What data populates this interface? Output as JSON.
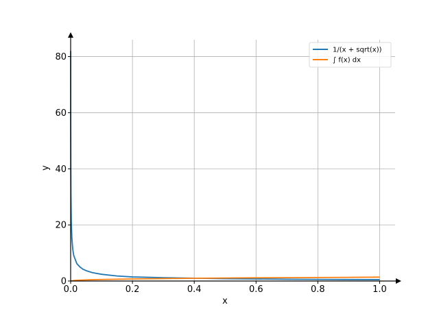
{
  "chart_data": {
    "type": "line",
    "title": "",
    "xlabel": "x",
    "ylabel": "y",
    "xlim": [
      0,
      1.05
    ],
    "ylim": [
      0,
      86
    ],
    "grid": true,
    "legend_position": "top-right",
    "x_ticks": [
      0,
      0.2,
      0.4,
      0.6,
      0.8,
      1.0
    ],
    "x_tick_labels": [
      "0.0",
      "0.2",
      "0.4",
      "0.6",
      "0.8",
      "1.0"
    ],
    "y_ticks": [
      0,
      20,
      40,
      60,
      80
    ],
    "y_tick_labels": [
      "0",
      "20",
      "40",
      "60",
      "80"
    ],
    "series": [
      {
        "name": "1/(x + sqrt(x))",
        "color": "#1f77b4",
        "x": [
          0.00015,
          0.0003,
          0.0006,
          0.001,
          0.002,
          0.004,
          0.007,
          0.01,
          0.02,
          0.03,
          0.04,
          0.05,
          0.07,
          0.1,
          0.15,
          0.2,
          0.25,
          0.3,
          0.4,
          0.5,
          0.6,
          0.7,
          0.8,
          0.9,
          1.0
        ],
        "y": [
          82.0,
          57.0,
          40.5,
          30.7,
          21.4,
          15.2,
          11.2,
          9.1,
          6.2,
          5.0,
          4.2,
          3.7,
          3.0,
          2.4,
          1.8,
          1.45,
          1.33,
          1.2,
          1.0,
          0.83,
          0.74,
          0.65,
          0.59,
          0.54,
          0.5
        ]
      },
      {
        "name": "∫ f(x) dx",
        "color": "#ff7f0e",
        "x": [
          0.0,
          0.01,
          0.02,
          0.05,
          0.1,
          0.15,
          0.2,
          0.3,
          0.4,
          0.5,
          0.6,
          0.7,
          0.8,
          0.9,
          1.0
        ],
        "y": [
          0.0,
          0.18,
          0.26,
          0.4,
          0.55,
          0.65,
          0.74,
          0.87,
          0.97,
          1.06,
          1.14,
          1.2,
          1.26,
          1.32,
          1.39
        ]
      }
    ]
  }
}
